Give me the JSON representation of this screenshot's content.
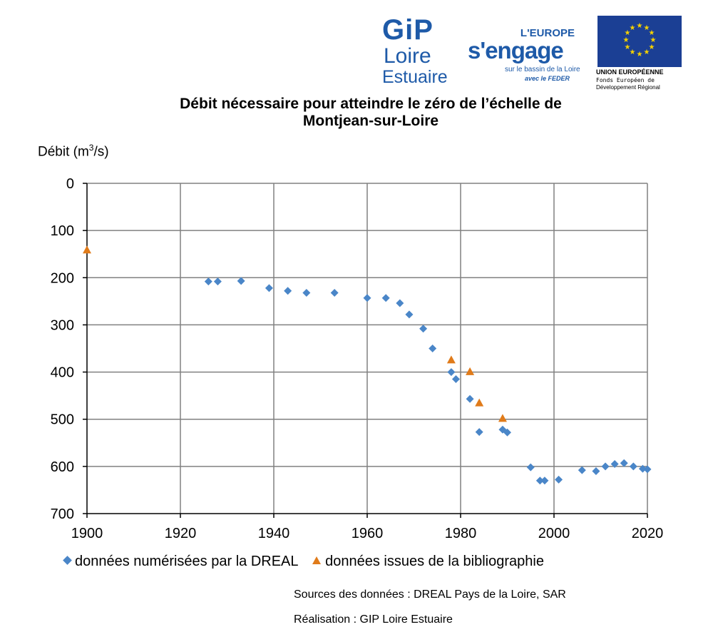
{
  "logos": {
    "gip": {
      "line1": "GiP",
      "line2": "Loire",
      "line3": "Estuaire"
    },
    "europe_engage": {
      "line1": "L'EUROPE",
      "line2": "s'engage",
      "line3": "sur le bassin de la Loire",
      "line4": "avec le FEDER"
    },
    "eu": {
      "line1": "UNION EUROPÉENNE",
      "line2": "Fonds Européen de",
      "line3": "Développement Régional"
    }
  },
  "colors": {
    "series_dreal": "#4a86c8",
    "series_biblio": "#e07b1a",
    "grid": "#808080",
    "eu_blue": "#1b3f94",
    "eu_star": "#f5d200"
  },
  "chart_data": {
    "type": "scatter",
    "title_line1": "Débit nécessaire pour atteindre le zéro de l’échelle de",
    "title_line2": "Montjean-sur-Loire",
    "ylabel_prefix": "Débit (m",
    "ylabel_sup": "3",
    "ylabel_suffix": "/s)",
    "xlim": [
      1900,
      2020
    ],
    "ylim": [
      0,
      700
    ],
    "y_inverted": true,
    "grid": true,
    "x_ticks": [
      1900,
      1920,
      1940,
      1960,
      1980,
      2000,
      2020
    ],
    "y_ticks": [
      0,
      100,
      200,
      300,
      400,
      500,
      600,
      700
    ],
    "legend_position": "bottom",
    "series": [
      {
        "name": "données numérisées par la DREAL",
        "marker": "diamond",
        "x": [
          1926,
          1928,
          1933,
          1939,
          1943,
          1947,
          1953,
          1960,
          1964,
          1967,
          1969,
          1972,
          1974,
          1978,
          1979,
          1982,
          1984,
          1989,
          1990,
          1995,
          1997,
          1998,
          2001,
          2006,
          2009,
          2011,
          2013,
          2015,
          2017,
          2019,
          2020
        ],
        "y": [
          208,
          208,
          207,
          222,
          228,
          232,
          232,
          243,
          243,
          254,
          278,
          308,
          350,
          400,
          415,
          457,
          527,
          522,
          528,
          602,
          630,
          630,
          628,
          608,
          610,
          600,
          595,
          593,
          600,
          605,
          606
        ]
      },
      {
        "name": "données issues de la bibliographie",
        "marker": "triangle",
        "x": [
          1900,
          1978,
          1982,
          1984,
          1989
        ],
        "y": [
          141,
          374,
          399,
          465,
          498
        ]
      }
    ]
  },
  "footer": {
    "sources": "Sources des données : DREAL Pays de la Loire, SAR",
    "realisation": "Réalisation : GIP Loire Estuaire"
  }
}
